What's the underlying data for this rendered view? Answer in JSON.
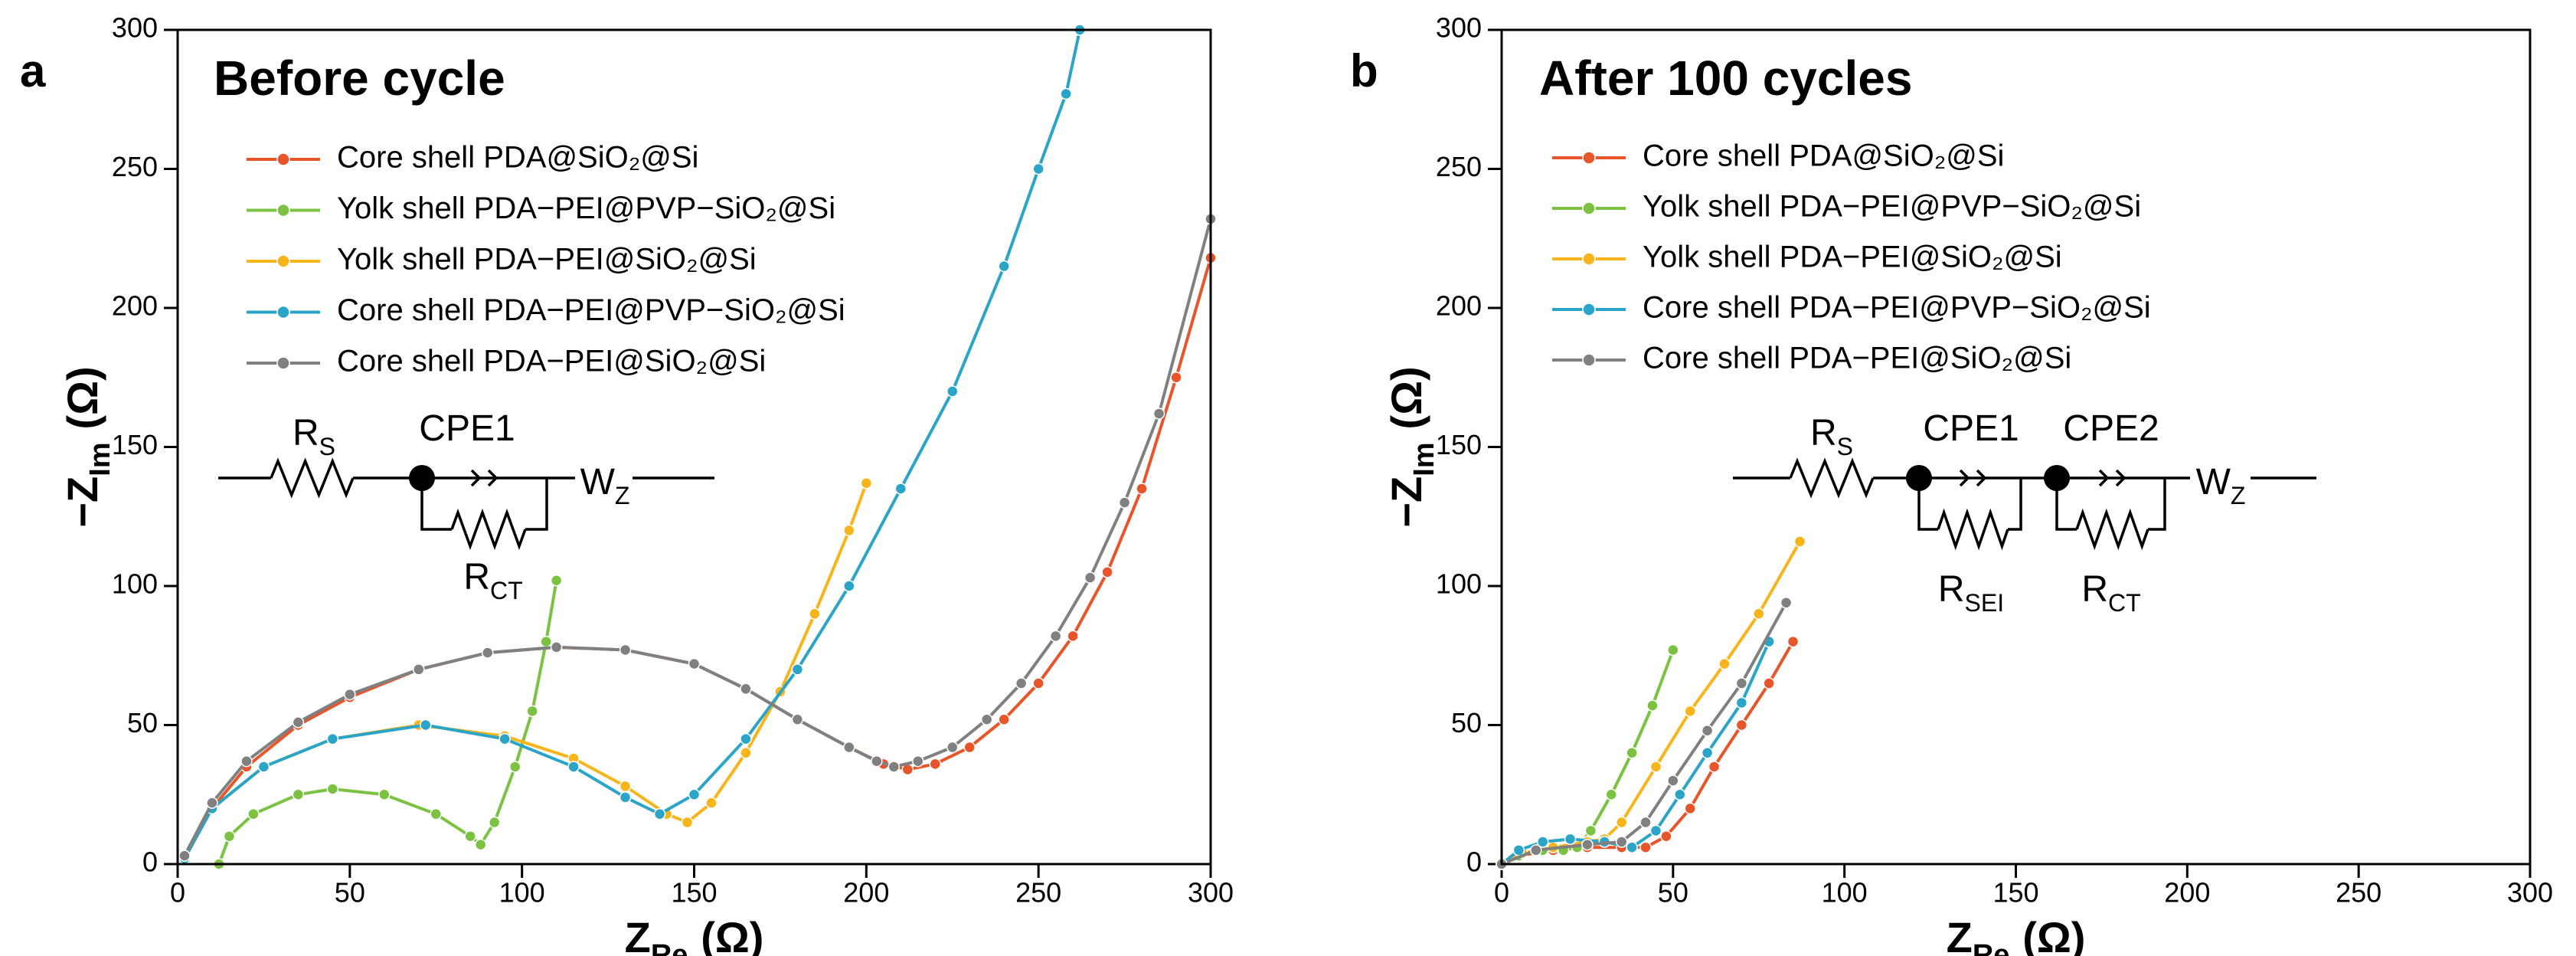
{
  "chart_data": [
    {
      "type": "line",
      "panel": "a",
      "title": "Before cycle",
      "xlabel": {
        "main": "Z",
        "sub": "Re",
        "unit": "(Ω)"
      },
      "ylabel": {
        "main": "−Z",
        "sub": "Im",
        "unit": "(Ω)"
      },
      "xlim": [
        0,
        300
      ],
      "xticks": [
        0,
        50,
        100,
        150,
        200,
        250,
        300
      ],
      "ylim": [
        0,
        300
      ],
      "yticks": [
        0,
        50,
        100,
        150,
        200,
        250,
        300
      ],
      "series": [
        {
          "name": "Core shell PDA@SiO₂@Si",
          "color": "#e8552a",
          "x": [
            2,
            10,
            20,
            35,
            50,
            70,
            90,
            110,
            130,
            150,
            165,
            180,
            195,
            205,
            212,
            220,
            230,
            240,
            250,
            260,
            270,
            280,
            290,
            300
          ],
          "values": [
            2,
            20,
            35,
            50,
            60,
            70,
            76,
            78,
            77,
            72,
            63,
            52,
            42,
            36,
            34,
            36,
            42,
            52,
            65,
            82,
            105,
            135,
            175,
            218
          ]
        },
        {
          "name": "Yolk shell PDA−PEI@PVP−SiO₂@Si",
          "color": "#7cc242",
          "x": [
            12,
            15,
            22,
            35,
            45,
            60,
            75,
            85,
            88,
            92,
            98,
            103,
            107,
            110
          ],
          "values": [
            0,
            10,
            18,
            25,
            27,
            25,
            18,
            10,
            7,
            15,
            35,
            55,
            80,
            102
          ]
        },
        {
          "name": "Yolk shell PDA−PEI@SiO₂@Si",
          "color": "#f7b51b",
          "x": [
            2,
            10,
            25,
            45,
            70,
            95,
            115,
            130,
            142,
            148,
            155,
            165,
            175,
            185,
            195,
            200
          ],
          "values": [
            2,
            20,
            35,
            45,
            50,
            46,
            38,
            28,
            18,
            15,
            22,
            40,
            62,
            90,
            120,
            137
          ]
        },
        {
          "name": "Core shell PDA−PEI@PVP−SiO₂@Si",
          "color": "#2aa5c8",
          "x": [
            2,
            10,
            25,
            45,
            72,
            95,
            115,
            130,
            140,
            150,
            165,
            180,
            195,
            210,
            225,
            240,
            250,
            258,
            262
          ],
          "values": [
            2,
            20,
            35,
            45,
            50,
            45,
            35,
            24,
            18,
            25,
            45,
            70,
            100,
            135,
            170,
            215,
            250,
            277,
            300
          ]
        },
        {
          "name": "Core shell PDA−PEI@SiO₂@Si",
          "color": "#808080",
          "x": [
            2,
            10,
            20,
            35,
            50,
            70,
            90,
            110,
            130,
            150,
            165,
            180,
            195,
            203,
            208,
            215,
            225,
            235,
            245,
            255,
            265,
            275,
            285,
            300
          ],
          "values": [
            3,
            22,
            37,
            51,
            61,
            70,
            76,
            78,
            77,
            72,
            63,
            52,
            42,
            37,
            35,
            37,
            42,
            52,
            65,
            82,
            103,
            130,
            162,
            232
          ]
        }
      ],
      "circuit": [
        {
          "main": "R",
          "sub": "S"
        },
        {
          "main": "CPE1"
        },
        {
          "main": "W",
          "sub": "Z"
        },
        {
          "main": "R",
          "sub": "CT"
        }
      ]
    },
    {
      "type": "line",
      "panel": "b",
      "title": "After 100 cycles",
      "xlabel": {
        "main": "Z",
        "sub": "Re",
        "unit": "(Ω)"
      },
      "ylabel": {
        "main": "−Z",
        "sub": "Im",
        "unit": "(Ω)"
      },
      "xlim": [
        0,
        300
      ],
      "xticks": [
        0,
        50,
        100,
        150,
        200,
        250,
        300
      ],
      "ylim": [
        0,
        300
      ],
      "yticks": [
        0,
        50,
        100,
        150,
        200,
        250,
        300
      ],
      "series": [
        {
          "name": "Core shell PDA@SiO₂@Si",
          "color": "#e8552a",
          "x": [
            0,
            5,
            15,
            25,
            35,
            42,
            48,
            55,
            62,
            70,
            78,
            85
          ],
          "values": [
            0,
            3,
            5,
            6,
            6,
            6,
            10,
            20,
            35,
            50,
            65,
            80
          ]
        },
        {
          "name": "Yolk shell PDA−PEI@PVP−SiO₂@Si",
          "color": "#7cc242",
          "x": [
            0,
            5,
            12,
            18,
            22,
            26,
            32,
            38,
            44,
            50
          ],
          "values": [
            0,
            3,
            5,
            5,
            6,
            12,
            25,
            40,
            57,
            77
          ]
        },
        {
          "name": "Yolk shell PDA−PEI@SiO₂@Si",
          "color": "#f7b51b",
          "x": [
            0,
            6,
            15,
            25,
            30,
            35,
            45,
            55,
            65,
            75,
            87
          ],
          "values": [
            0,
            4,
            6,
            8,
            9,
            15,
            35,
            55,
            72,
            90,
            116
          ]
        },
        {
          "name": "Core shell PDA−PEI@PVP−SiO₂@Si",
          "color": "#2aa5c8",
          "x": [
            0,
            5,
            12,
            20,
            30,
            38,
            45,
            52,
            60,
            70,
            78
          ],
          "values": [
            0,
            5,
            8,
            9,
            8,
            6,
            12,
            25,
            40,
            58,
            80
          ]
        },
        {
          "name": "Core shell PDA−PEI@SiO₂@Si",
          "color": "#808080",
          "x": [
            0,
            10,
            25,
            35,
            42,
            50,
            60,
            70,
            83
          ],
          "values": [
            0,
            5,
            7,
            8,
            15,
            30,
            48,
            65,
            94
          ]
        }
      ],
      "circuit": [
        {
          "main": "R",
          "sub": "S"
        },
        {
          "main": "CPE1"
        },
        {
          "main": "CPE2"
        },
        {
          "main": "W",
          "sub": "Z"
        },
        {
          "main": "R",
          "sub": "SEI"
        },
        {
          "main": "R",
          "sub": "CT"
        }
      ]
    }
  ]
}
